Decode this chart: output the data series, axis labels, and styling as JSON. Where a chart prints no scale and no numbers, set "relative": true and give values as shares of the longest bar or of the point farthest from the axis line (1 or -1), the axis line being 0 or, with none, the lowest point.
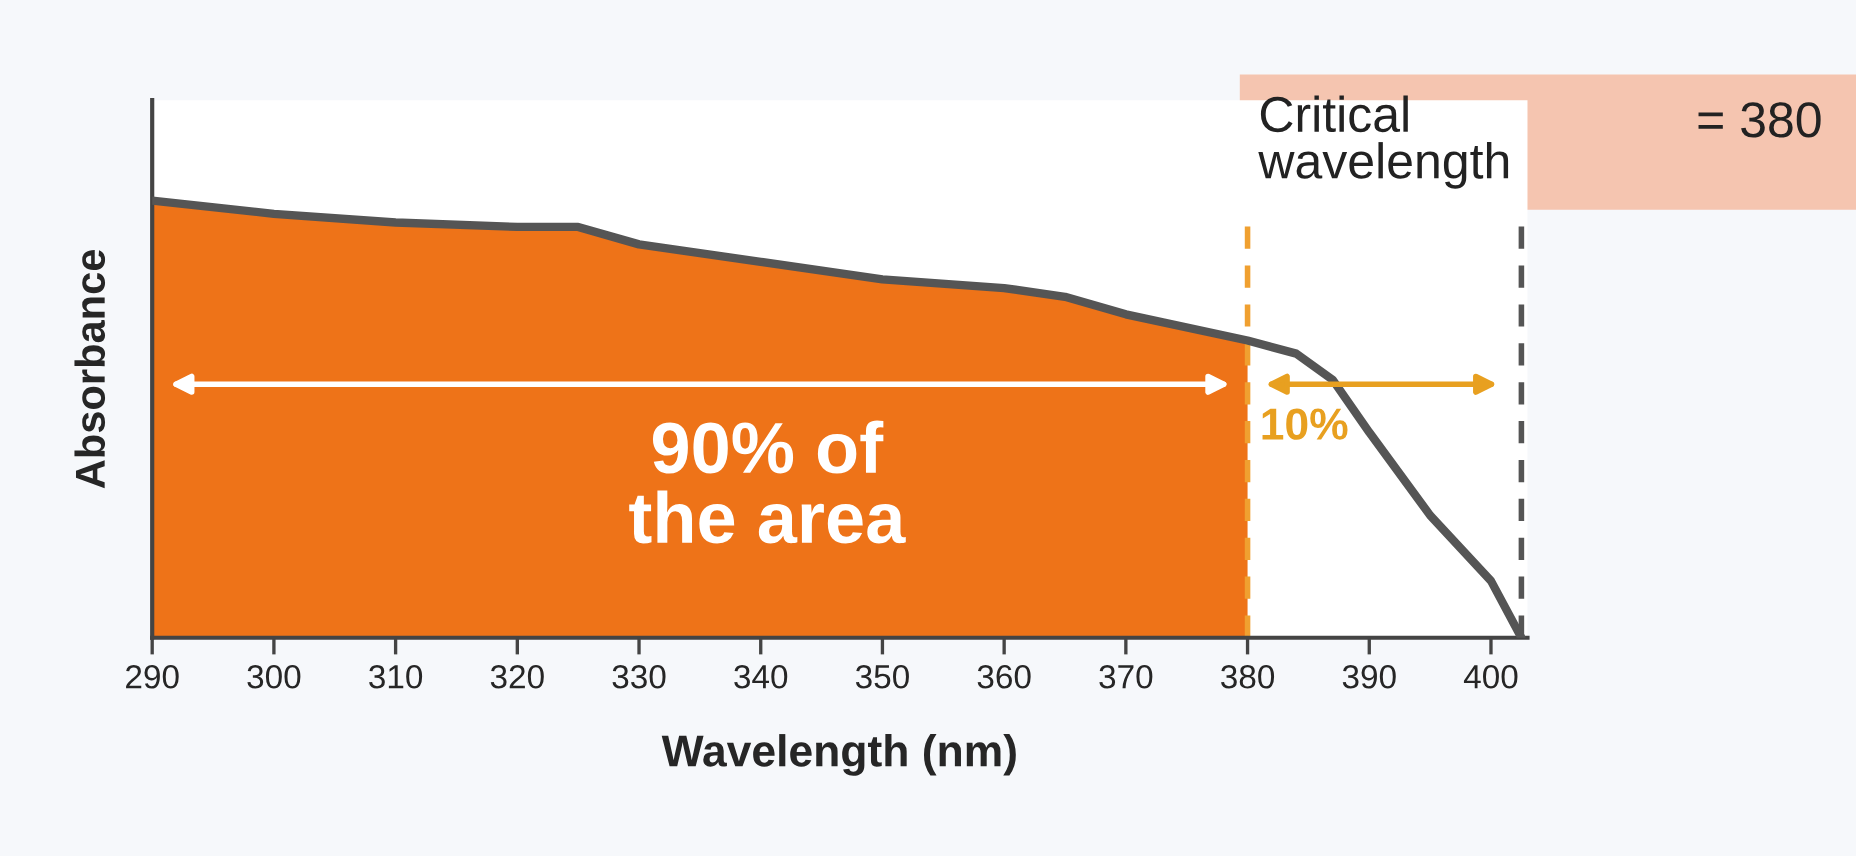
{
  "chart_data": {
    "type": "area",
    "relative": true,
    "xlabel": "Wavelength (nm)",
    "ylabel": "Absorbance",
    "xlim": [
      290,
      403
    ],
    "xticks": [
      290,
      300,
      310,
      320,
      330,
      340,
      350,
      360,
      370,
      380,
      390,
      400
    ],
    "series": [
      {
        "color": "#ee7318",
        "x": [
          290,
          300,
          310,
          320,
          325,
          330,
          340,
          350,
          360,
          365,
          370,
          380
        ],
        "values": [
          1,
          0.97,
          0.95,
          0.94,
          0.94,
          0.9,
          0.86,
          0.82,
          0.8,
          0.78,
          0.74,
          0.68
        ]
      },
      {
        "type": "line",
        "color": "#555555",
        "x": [
          290,
          300,
          310,
          320,
          325,
          330,
          340,
          350,
          360,
          365,
          370,
          380,
          384,
          387,
          390,
          395,
          400,
          402.5
        ],
        "values": [
          1,
          0.97,
          0.95,
          0.94,
          0.94,
          0.9,
          0.86,
          0.82,
          0.8,
          0.78,
          0.74,
          0.68,
          0.65,
          0.59,
          0.47,
          0.28,
          0.13,
          0
        ]
      }
    ],
    "ref_lines": [
      {
        "axis": "x",
        "value": 380,
        "color": "#f0a030",
        "line_style": "dashed"
      },
      {
        "axis": "x",
        "value": 402.5,
        "color": "#555555",
        "line_style": "dashed"
      }
    ],
    "annotations": [
      "Critical\nwavelength",
      "= 380",
      "90% of\nthe area",
      "10%"
    ],
    "grid": false,
    "legend": false
  }
}
